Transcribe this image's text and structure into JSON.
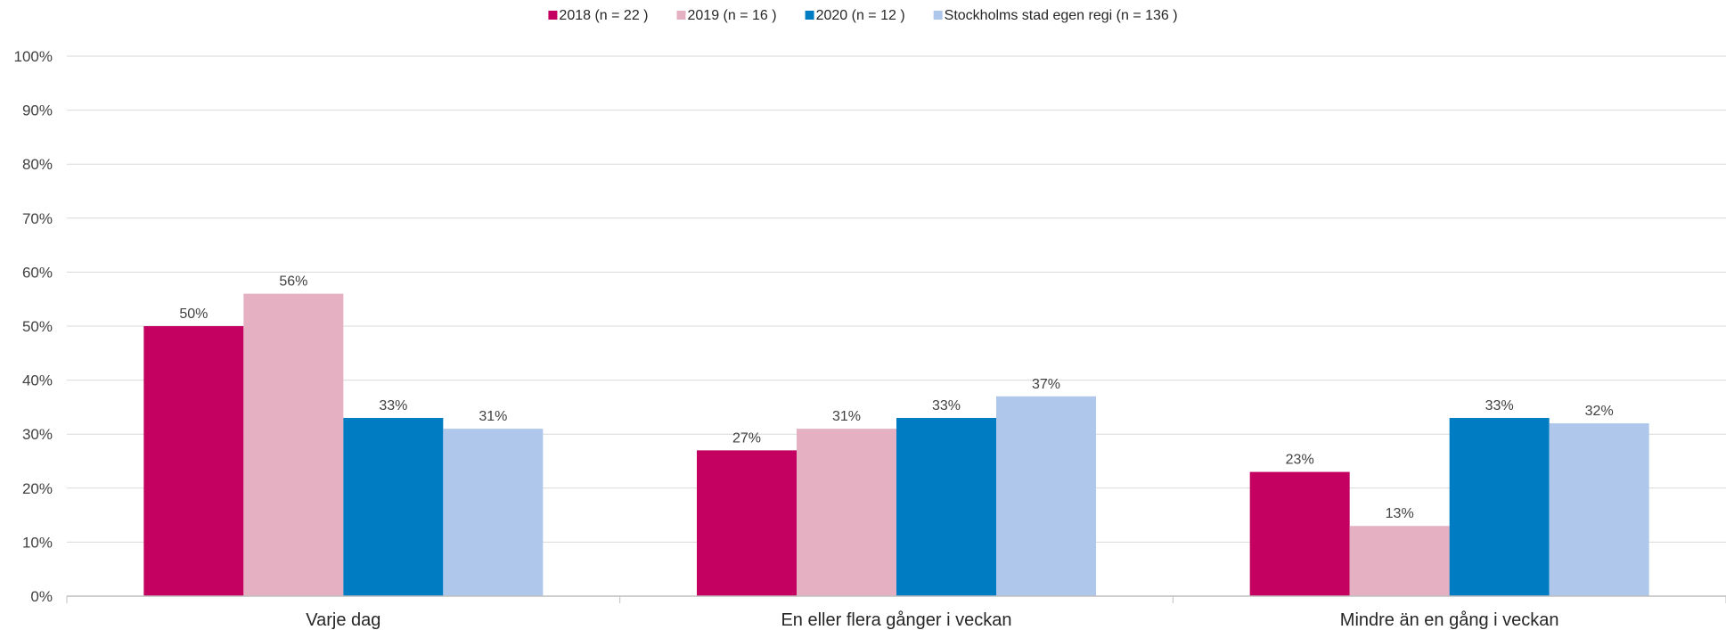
{
  "chart_data": {
    "type": "bar",
    "title": "",
    "xlabel": "",
    "ylabel": "",
    "categories": [
      "Varje dag",
      "En eller flera gånger i veckan",
      "Mindre än en gång i veckan"
    ],
    "series": [
      {
        "name": "2018 (n = 22 )",
        "color": "#C40060",
        "values": [
          50,
          27,
          23
        ],
        "labels": [
          "50%",
          "27%",
          "23%"
        ]
      },
      {
        "name": "2019 (n = 16 )",
        "color": "#E4B0C2",
        "values": [
          56,
          31,
          13
        ],
        "labels": [
          "56%",
          "31%",
          "13%"
        ]
      },
      {
        "name": "2020 (n = 12 )",
        "color": "#007CC3",
        "values": [
          33,
          33,
          33
        ],
        "labels": [
          "33%",
          "33%",
          "33%"
        ]
      },
      {
        "name": "Stockholms stad egen regi (n = 136 )",
        "color": "#AEC7EA",
        "values": [
          31,
          37,
          32
        ],
        "labels": [
          "31%",
          "37%",
          "32%"
        ]
      }
    ],
    "ylim": [
      0,
      100
    ],
    "yticks": [
      0,
      10,
      20,
      30,
      40,
      50,
      60,
      70,
      80,
      90,
      100
    ],
    "ytick_labels": [
      "0%",
      "10%",
      "20%",
      "30%",
      "40%",
      "50%",
      "60%",
      "70%",
      "80%",
      "90%",
      "100%"
    ],
    "grid": true,
    "legend_position": "top-center"
  }
}
